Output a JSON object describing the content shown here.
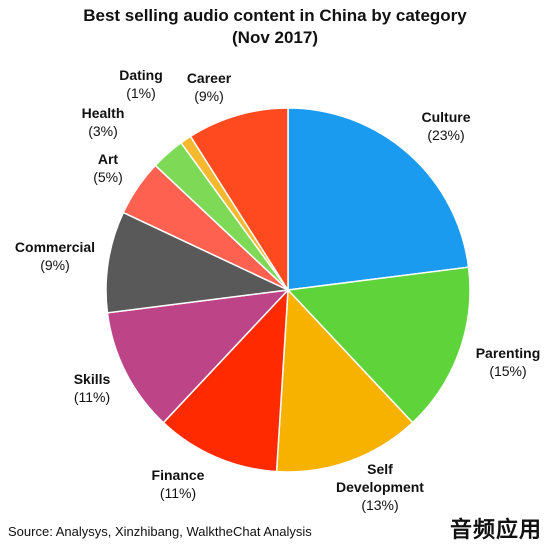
{
  "chart_data": {
    "type": "pie",
    "title": "Best selling audio content in China by category",
    "subtitle": "(Nov 2017)",
    "slices": [
      {
        "name": "Culture",
        "value": 23,
        "label": "(23%)",
        "color": "#1a9bf0"
      },
      {
        "name": "Parenting",
        "value": 15,
        "label": "(15%)",
        "color": "#5fd43a"
      },
      {
        "name": "Self Development",
        "lines": [
          "Self",
          "Development"
        ],
        "value": 13,
        "label": "(13%)",
        "color": "#f7b200"
      },
      {
        "name": "Finance",
        "value": 11,
        "label": "(11%)",
        "color": "#ff2a00"
      },
      {
        "name": "Skills",
        "value": 11,
        "label": "(11%)",
        "color": "#bd4587"
      },
      {
        "name": "Commercial",
        "value": 9,
        "label": "(9%)",
        "color": "#595959"
      },
      {
        "name": "Art",
        "value": 5,
        "label": "(5%)",
        "color": "#ff6150"
      },
      {
        "name": "Health",
        "value": 3,
        "label": "(3%)",
        "color": "#7ed957"
      },
      {
        "name": "Dating",
        "value": 1,
        "label": "(1%)",
        "color": "#f5b82e"
      },
      {
        "name": "Career",
        "value": 9,
        "label": "(9%)",
        "color": "#ff4a1f"
      }
    ]
  },
  "source": "Source: Analysys, Xinzhibang, WalktheChat Analysis",
  "watermark": "音频应用"
}
